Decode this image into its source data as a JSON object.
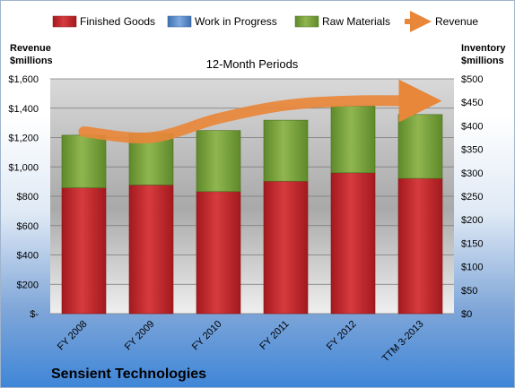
{
  "chart_data": {
    "type": "bar",
    "stacked": true,
    "subtitle": "12-Month Periods",
    "company": "Sensient Technologies",
    "left_axis_title": [
      "Revenue",
      "$millions"
    ],
    "right_axis_title": [
      "Inventory",
      "$millions"
    ],
    "categories": [
      "FY 2008",
      "FY 2009",
      "FY 2010",
      "FY 2011",
      "FY 2012",
      "TTM 3-2013"
    ],
    "series": [
      {
        "name": "Finished Goods",
        "axis": "right",
        "color": "#c0282c",
        "values": [
          268,
          274,
          260,
          282,
          300,
          288
        ]
      },
      {
        "name": "Work in Progress",
        "axis": "right",
        "color": "#5b8fd0",
        "values": [
          0,
          0,
          0,
          0,
          0,
          0
        ]
      },
      {
        "name": "Raw Materials",
        "axis": "right",
        "color": "#7ea23e",
        "values": [
          112,
          110,
          130,
          130,
          142,
          136
        ]
      },
      {
        "name": "Revenue",
        "type": "line",
        "axis": "left",
        "color": "#e8873a",
        "values": [
          1240,
          1200,
          1330,
          1420,
          1450,
          1450
        ]
      }
    ],
    "left_axis": {
      "min": 0,
      "max": 1600,
      "step": 200,
      "tick_labels": [
        "$-",
        "$200",
        "$400",
        "$600",
        "$800",
        "$1,000",
        "$1,200",
        "$1,400",
        "$1,600"
      ]
    },
    "right_axis": {
      "min": 0,
      "max": 500,
      "step": 50,
      "tick_labels": [
        "$0",
        "$50",
        "$100",
        "$150",
        "$200",
        "$250",
        "$300",
        "$350",
        "$400",
        "$450",
        "$500"
      ]
    },
    "legend_position": "top",
    "grid": true
  }
}
